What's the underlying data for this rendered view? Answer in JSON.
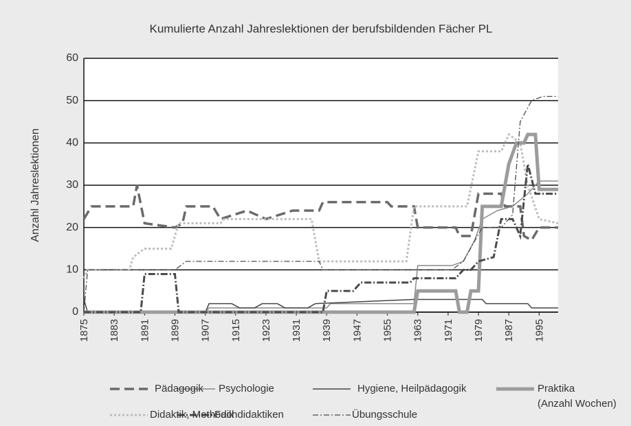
{
  "chart_data": {
    "type": "line",
    "title": "Kumulierte Anzahl Jahreslektionen der berufsbildenden Fächer PL",
    "y_label": "Anzahl Jahreslektionen",
    "xlim": [
      1875,
      2000
    ],
    "xticks": [
      1875,
      1883,
      1891,
      1899,
      1907,
      1915,
      1923,
      1931,
      1939,
      1947,
      1955,
      1963,
      1971,
      1979,
      1987,
      1995
    ],
    "ylim": [
      0,
      60
    ],
    "yticks": [
      0,
      10,
      20,
      30,
      40,
      50,
      60
    ],
    "grid": true,
    "series": [
      {
        "name": "Pädagogik",
        "color": "#6a6a6a",
        "width": 3.5,
        "dash": "14,7",
        "x": [
          1875,
          1877,
          1888,
          1889,
          1891,
          1899,
          1901,
          1902,
          1909,
          1911,
          1918,
          1923,
          1930,
          1937,
          1938,
          1955,
          1956,
          1962,
          1963,
          1973,
          1974,
          1977,
          1979,
          1985,
          1986,
          1990,
          1991,
          1993,
          1995,
          2000
        ],
        "values": [
          22,
          25,
          25,
          30,
          21,
          20,
          21,
          25,
          25,
          22,
          24,
          22,
          24,
          24,
          26,
          26,
          25,
          25,
          20,
          20,
          18,
          18,
          28,
          28,
          25,
          25,
          18,
          17,
          20,
          20
        ]
      },
      {
        "name": "Didaktik, Methodik",
        "color": "#bdbdbd",
        "width": 3,
        "dash": "3,3",
        "x": [
          1875,
          1876,
          1887,
          1888,
          1891,
          1898,
          1900,
          1911,
          1912,
          1935,
          1937,
          1960,
          1962,
          1976,
          1979,
          1985,
          1987,
          1990,
          1992,
          1995,
          2000
        ],
        "values": [
          8,
          10,
          10,
          13,
          15,
          15,
          21,
          21,
          22,
          22,
          12,
          12,
          25,
          25,
          38,
          38,
          42,
          40,
          30,
          22,
          21
        ]
      },
      {
        "name": "Psychologie",
        "color": "#8a8a8a",
        "width": 1.5,
        "dash": "",
        "x": [
          1875,
          1907,
          1908,
          1939,
          1940,
          1962,
          1963,
          1972,
          1975,
          1978,
          1980,
          1984,
          1988,
          1992,
          1995,
          2000
        ],
        "values": [
          0,
          0,
          1,
          1,
          2,
          2,
          11,
          11,
          12,
          17,
          22,
          24,
          25,
          28,
          31,
          31
        ]
      },
      {
        "name": "Hygiene, Heilpädagogik",
        "color": "#454545",
        "width": 1.5,
        "dash": "",
        "x": [
          1875,
          1876,
          1907,
          1908,
          1914,
          1916,
          1920,
          1922,
          1926,
          1928,
          1934,
          1936,
          1962,
          1980,
          1981,
          1992,
          1993,
          2000
        ],
        "values": [
          3,
          0,
          0,
          2,
          2,
          1,
          1,
          2,
          2,
          1,
          1,
          2,
          3,
          3,
          2,
          2,
          1,
          1
        ]
      },
      {
        "name": "Praktika\n(Anzahl Wochen)",
        "color": "#9c9c9c",
        "width": 5,
        "dash": "",
        "x": [
          1875,
          1962,
          1963,
          1973,
          1974,
          1976,
          1977,
          1979,
          1980,
          1985,
          1987,
          1989,
          1991,
          1992,
          1994,
          1995,
          2000
        ],
        "values": [
          0,
          0,
          5,
          5,
          0,
          0,
          5,
          5,
          25,
          25,
          35,
          40,
          40,
          42,
          42,
          29,
          29
        ]
      },
      {
        "name": "Fachdidaktiken",
        "color": "#4a4a4a",
        "width": 3,
        "dash": "10,3,2,3",
        "x": [
          1875,
          1890,
          1891,
          1899,
          1900,
          1938,
          1939,
          1946,
          1948,
          1961,
          1962,
          1973,
          1975,
          1977,
          1979,
          1983,
          1985,
          1988,
          1990,
          1992,
          1994,
          2000
        ],
        "values": [
          0,
          0,
          9,
          9,
          0,
          0,
          5,
          5,
          7,
          7,
          8,
          8,
          10,
          10,
          12,
          13,
          22,
          22,
          18,
          35,
          28,
          28
        ]
      },
      {
        "name": "Übungsschule",
        "color": "#4a4a4a",
        "width": 1.3,
        "dash": "8,3,2,3",
        "x": [
          1875,
          1876,
          1899,
          1902,
          1937,
          1938,
          1972,
          1975,
          1980,
          1985,
          1988,
          1990,
          1993,
          1996,
          2000
        ],
        "values": [
          0,
          10,
          10,
          12,
          12,
          10,
          10,
          12,
          20,
          20,
          23,
          45,
          50,
          51,
          51
        ]
      }
    ]
  }
}
